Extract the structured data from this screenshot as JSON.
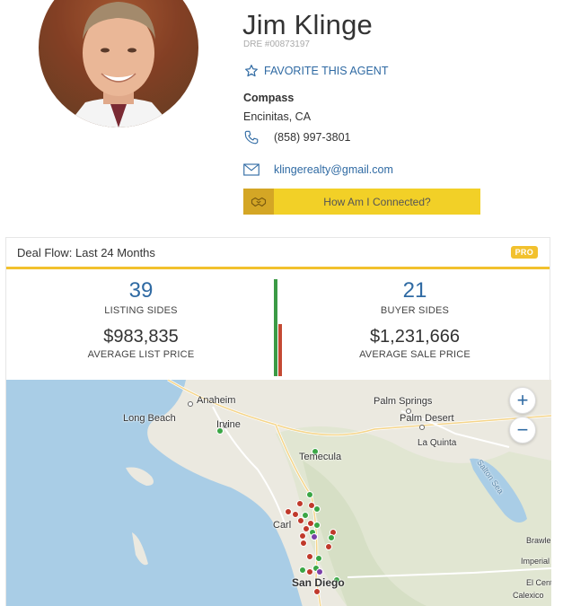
{
  "agent": {
    "name": "Jim Klinge",
    "dre": "DRE #00873197",
    "favorite_label": "FAVORITE THIS AGENT",
    "company": "Compass",
    "city": "Encinitas, CA",
    "phone": "(858) 997-3801",
    "email": "klingerealty@gmail.com",
    "connect_label": "How Am I Connected?"
  },
  "deal_flow": {
    "title": "Deal Flow: Last 24 Months",
    "badge": "PRO",
    "listing_sides": "39",
    "listing_sides_label": "LISTING SIDES",
    "avg_list_price": "$983,835",
    "avg_list_price_label": "AVERAGE LIST PRICE",
    "buyer_sides": "21",
    "buyer_sides_label": "BUYER SIDES",
    "avg_sale_price": "$1,231,666",
    "avg_sale_price_label": "AVERAGE SALE PRICE"
  },
  "map": {
    "labels": {
      "anaheim": "Anaheim",
      "long_beach": "Long Beach",
      "irvine": "Irvine",
      "palm_springs": "Palm Springs",
      "palm_desert": "Palm Desert",
      "la_quinta": "La Quinta",
      "temecula": "Temecula",
      "carlsbad": "Carl",
      "san_diego": "San Diego",
      "salton_sea": "Salton Sea",
      "brawley": "Brawle",
      "imperial": "Imperial",
      "el_centro": "El Centro",
      "calexico": "Calexico"
    },
    "zoom_in": "+",
    "zoom_out": "−",
    "colors": {
      "listing": "#c0392b",
      "buyer": "#3aa645",
      "both": "#7b3fa8",
      "water": "#a9cde6"
    }
  }
}
